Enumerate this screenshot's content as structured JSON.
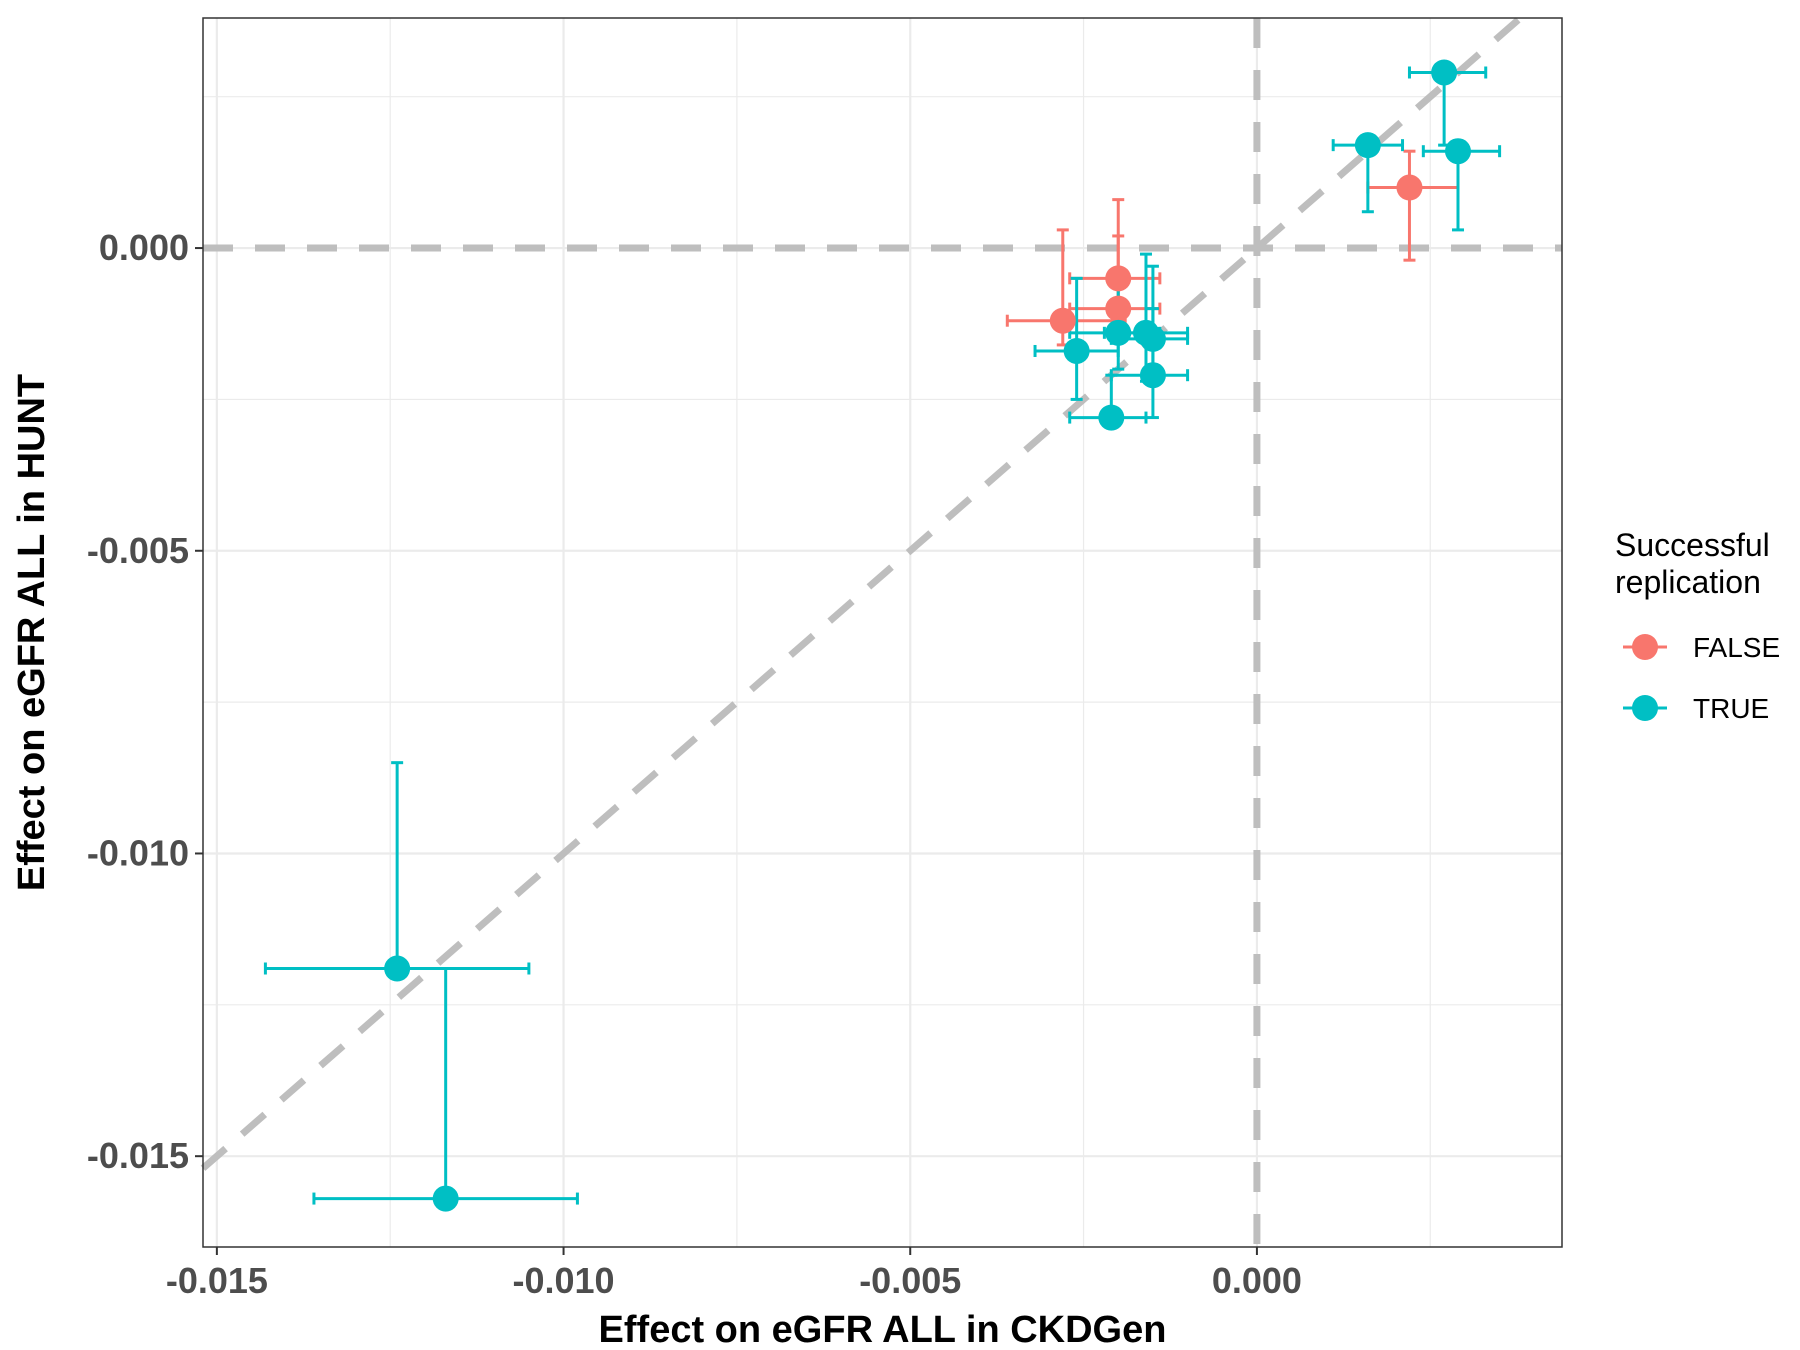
{
  "chart_data": {
    "type": "scatter",
    "title": "",
    "xlabel": "Effect on eGFR ALL in CKDGen",
    "ylabel": "Effect on eGFR ALL in HUNT",
    "xlim": [
      -0.0152,
      0.0044
    ],
    "ylim": [
      -0.0165,
      0.0038
    ],
    "x_ticks": [
      -0.015,
      -0.01,
      -0.005,
      0.0
    ],
    "x_tick_labels": [
      "-0.015",
      "-0.010",
      "-0.005",
      "0.000"
    ],
    "y_ticks": [
      -0.015,
      -0.01,
      -0.005,
      0.0
    ],
    "y_tick_labels": [
      "-0.015",
      "-0.010",
      "-0.005",
      "0.000"
    ],
    "grid": true,
    "reference_lines": [
      "x = 0",
      "y = 0",
      "y = x"
    ],
    "legend": {
      "title": "Successful replication",
      "placement": "right",
      "entries": [
        {
          "label": "FALSE",
          "color": "#F8766D"
        },
        {
          "label": "TRUE",
          "color": "#00BFC4"
        }
      ]
    },
    "series": [
      {
        "name": "FALSE",
        "color": "#F8766D",
        "points": [
          {
            "x": -0.0028,
            "y": -0.0012,
            "xmin": -0.0036,
            "xmax": -0.0019,
            "ymin": -0.0016,
            "ymax": 0.0003
          },
          {
            "x": -0.002,
            "y": -0.0005,
            "xmin": -0.0027,
            "xmax": -0.0014,
            "ymin": -0.0012,
            "ymax": 0.0008
          },
          {
            "x": -0.002,
            "y": -0.001,
            "xmin": -0.0027,
            "xmax": -0.0014,
            "ymin": -0.0014,
            "ymax": 0.0002
          },
          {
            "x": 0.0022,
            "y": 0.001,
            "xmin": 0.0016,
            "xmax": 0.0029,
            "ymin": -0.0002,
            "ymax": 0.0016
          }
        ]
      },
      {
        "name": "TRUE",
        "color": "#00BFC4",
        "points": [
          {
            "x": -0.0026,
            "y": -0.0017,
            "xmin": -0.0032,
            "xmax": -0.002,
            "ymin": -0.0025,
            "ymax": -0.0005
          },
          {
            "x": -0.002,
            "y": -0.0014,
            "xmin": -0.0027,
            "xmax": -0.0014,
            "ymin": -0.002,
            "ymax": -0.0005
          },
          {
            "x": -0.0016,
            "y": -0.0014,
            "xmin": -0.0022,
            "xmax": -0.001,
            "ymin": -0.0022,
            "ymax": -0.0001
          },
          {
            "x": -0.0015,
            "y": -0.0015,
            "xmin": -0.0021,
            "xmax": -0.001,
            "ymin": -0.0021,
            "ymax": -0.0003
          },
          {
            "x": -0.0015,
            "y": -0.0021,
            "xmin": -0.0021,
            "xmax": -0.001,
            "ymin": -0.0028,
            "ymax": -0.001
          },
          {
            "x": -0.0021,
            "y": -0.0028,
            "xmin": -0.0027,
            "xmax": -0.0016,
            "ymin": -0.0028,
            "ymax": -0.0021
          },
          {
            "x": 0.0016,
            "y": 0.0017,
            "xmin": 0.0011,
            "xmax": 0.0021,
            "ymin": 0.0006,
            "ymax": 0.0017
          },
          {
            "x": 0.0027,
            "y": 0.0029,
            "xmin": 0.0022,
            "xmax": 0.0033,
            "ymin": 0.0017,
            "ymax": 0.0029
          },
          {
            "x": 0.0029,
            "y": 0.0016,
            "xmin": 0.0024,
            "xmax": 0.0035,
            "ymin": 0.0003,
            "ymax": 0.0016
          },
          {
            "x": -0.0124,
            "y": -0.0119,
            "xmin": -0.0143,
            "xmax": -0.0105,
            "ymin": -0.0119,
            "ymax": -0.0085
          },
          {
            "x": -0.0117,
            "y": -0.0157,
            "xmin": -0.0136,
            "xmax": -0.0098,
            "ymin": -0.0157,
            "ymax": -0.0119
          }
        ]
      }
    ]
  }
}
